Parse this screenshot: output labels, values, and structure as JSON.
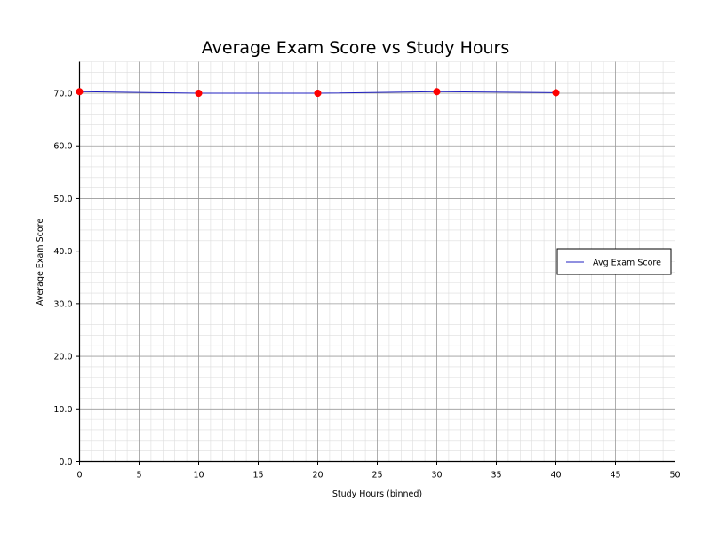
{
  "chart_data": {
    "type": "line",
    "title": "Average Exam Score vs Study Hours",
    "xlabel": "Study Hours (binned)",
    "ylabel": "Average Exam Score",
    "xlim": [
      0,
      50
    ],
    "ylim": [
      0,
      76
    ],
    "x_ticks": [
      0,
      5,
      10,
      15,
      20,
      25,
      30,
      35,
      40,
      45,
      50
    ],
    "x_tick_labels": [
      "0",
      "5",
      "10",
      "15",
      "20",
      "25",
      "30",
      "35",
      "40",
      "45",
      "50"
    ],
    "y_ticks": [
      0,
      10,
      20,
      30,
      40,
      50,
      60,
      70
    ],
    "y_tick_labels": [
      "0.0",
      "10.0",
      "20.0",
      "30.0",
      "40.0",
      "50.0",
      "60.0",
      "70.0"
    ],
    "grid": true,
    "minor_grid": true,
    "legend_position": "center-right",
    "series": [
      {
        "name": "Avg Exam Score",
        "line_color": "#2020c0",
        "marker_color": "#ff0000",
        "x": [
          0,
          10,
          20,
          30,
          40
        ],
        "y": [
          70.3,
          70.0,
          70.0,
          70.3,
          70.1
        ]
      }
    ]
  }
}
